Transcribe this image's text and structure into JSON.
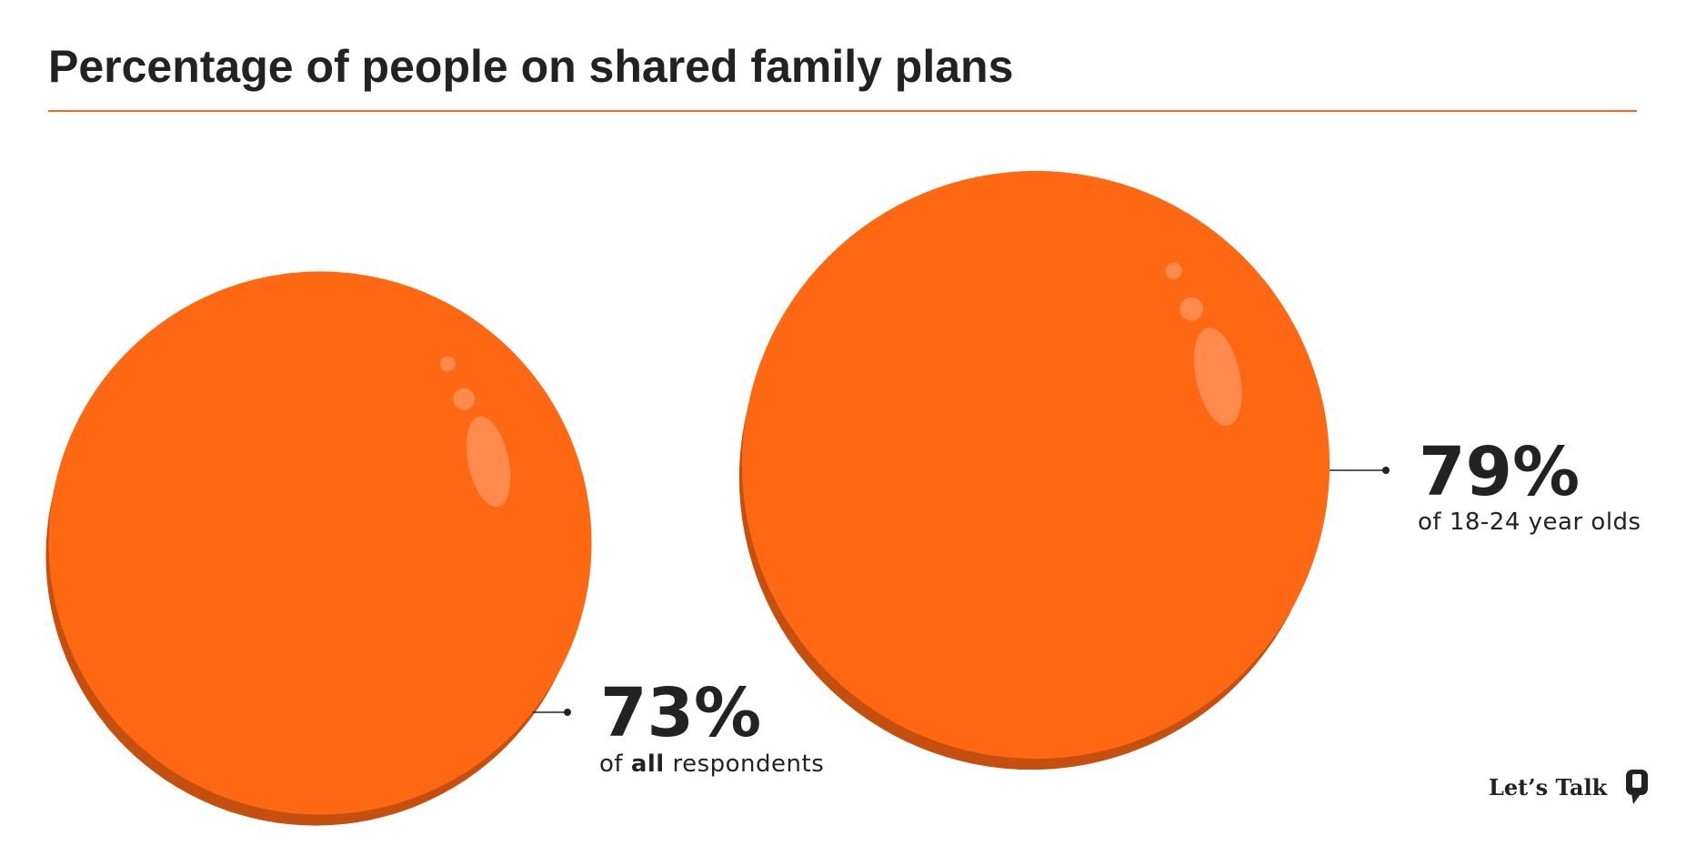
{
  "chart_data": {
    "type": "bubble",
    "title": "Percentage of people on shared family plans",
    "categories": [
      [
        "of ",
        "all",
        " respondents"
      ],
      [
        "of 18-24 year olds"
      ]
    ],
    "values": [
      73,
      79
    ],
    "value_labels": [
      "73%",
      "79%"
    ],
    "color": "#ff6813",
    "shadow_color": "#c44f0e"
  },
  "logo": {
    "text": "Let’s Talk"
  }
}
